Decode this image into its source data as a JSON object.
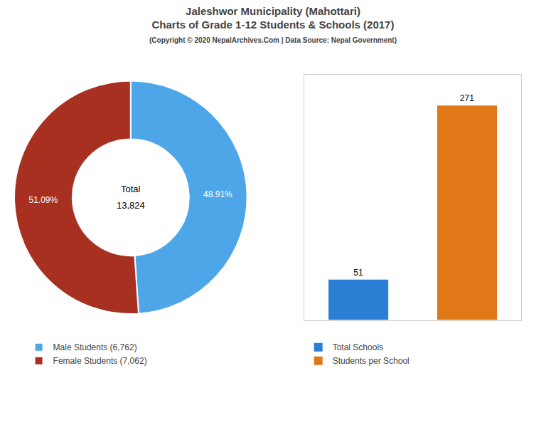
{
  "title": "Jaleshwor Municipality (Mahottari)\nCharts of Grade 1-12 Students & Schools (2017)",
  "subtitle": "(Copyright © 2020 NepalArchives.Com | Data Source: Nepal Government)",
  "chart_data": [
    {
      "type": "donut",
      "categories": [
        "Male Students (6,762)",
        "Female Students (7,062)"
      ],
      "values": [
        48.91,
        51.09
      ],
      "value_labels": [
        "48.91%",
        "51.09%"
      ],
      "data_labels": true,
      "colors": [
        "#4da6e8",
        "#a83020"
      ],
      "annotations": [
        "Total",
        "13,824"
      ],
      "legend": "bottom"
    },
    {
      "type": "bar",
      "categories": [
        "Total Schools",
        "Students per School"
      ],
      "values": [
        51,
        271
      ],
      "colors": [
        "#2b7fd4",
        "#e07818"
      ],
      "ylim": [
        0,
        310
      ],
      "data_labels": true,
      "tick_labels": false,
      "grid": false,
      "legend": "bottom"
    }
  ]
}
